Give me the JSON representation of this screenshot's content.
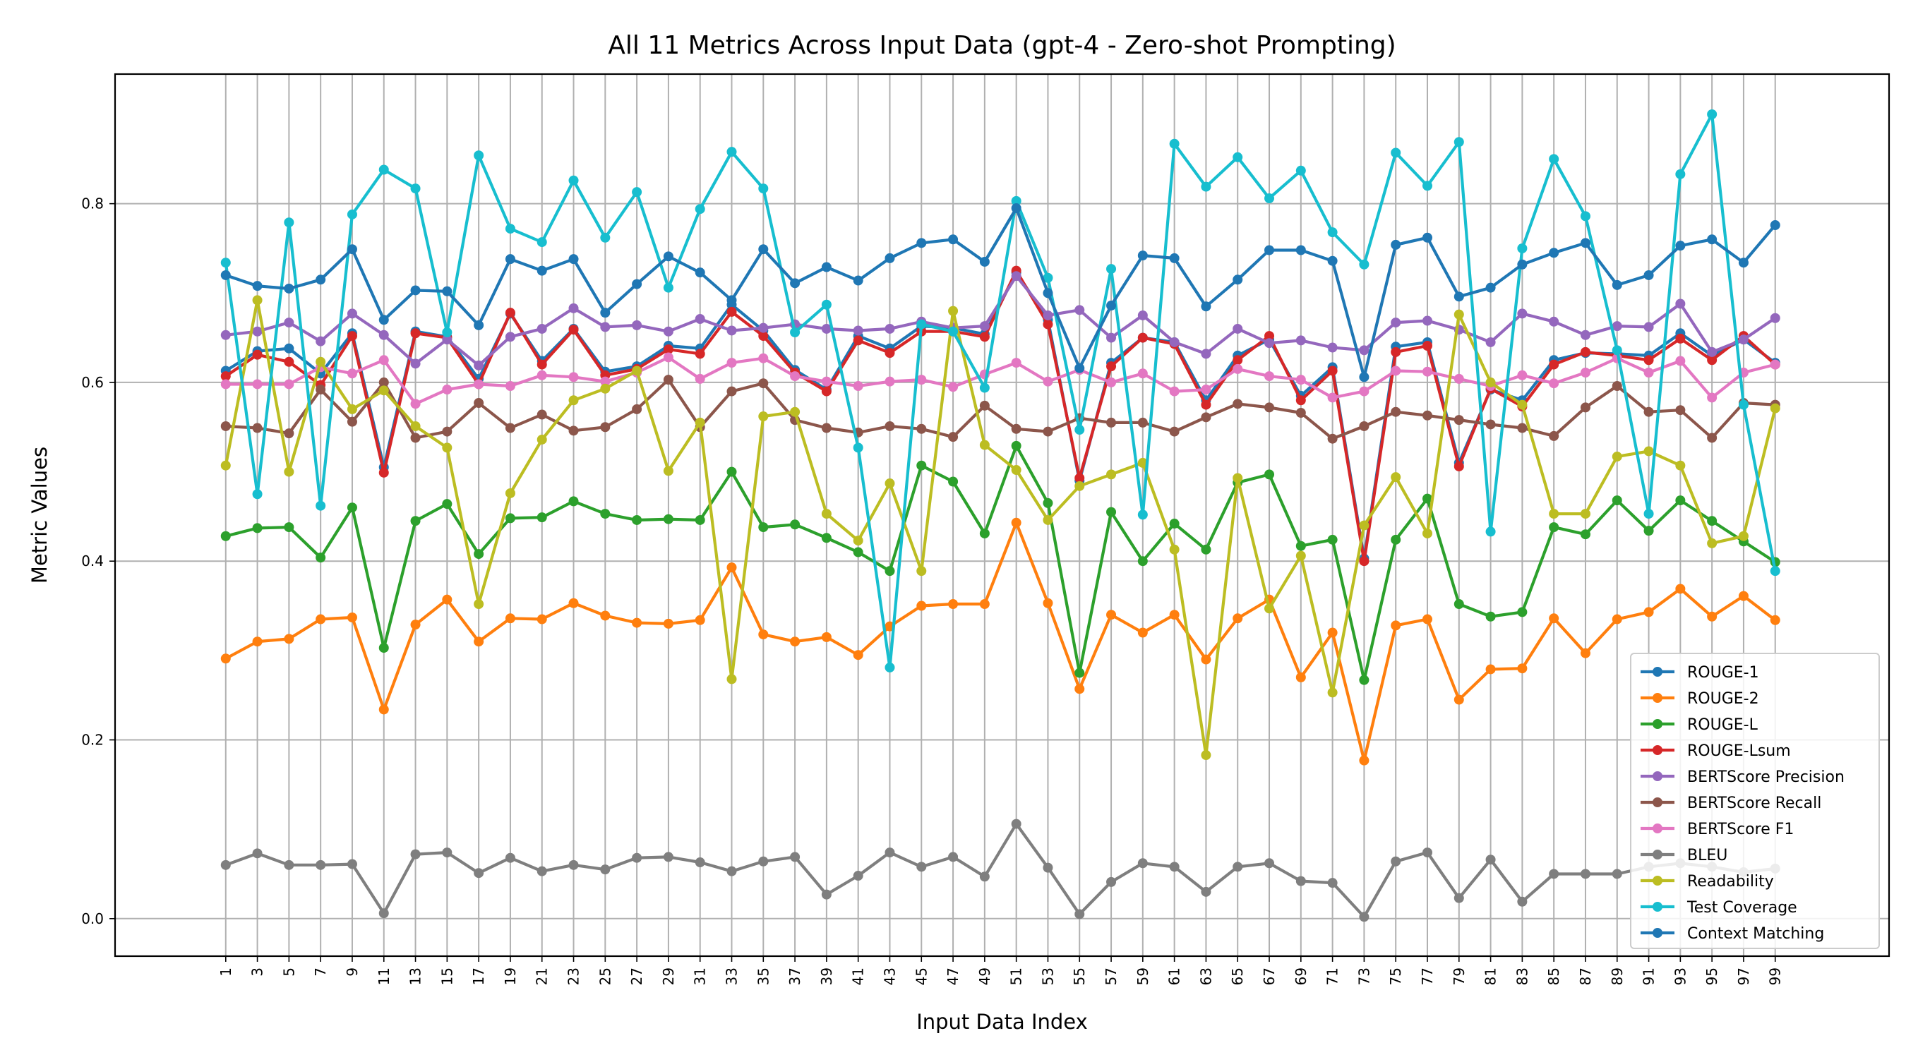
{
  "chart_data": {
    "type": "line",
    "title": "All 11 Metrics Across Input Data (gpt-4 - Zero-shot Prompting)",
    "xlabel": "Input Data Index",
    "ylabel": "Metric Values",
    "ylim": [
      -0.042,
      0.945
    ],
    "yticks": [
      0.0,
      0.2,
      0.4,
      0.6,
      0.8
    ],
    "ytick_labels": [
      "0.0",
      "0.2",
      "0.4",
      "0.6",
      "0.8"
    ],
    "grid": true,
    "legend_position": "lower-right",
    "x": [
      1,
      3,
      5,
      7,
      9,
      11,
      13,
      15,
      17,
      19,
      21,
      23,
      25,
      27,
      29,
      31,
      33,
      35,
      37,
      39,
      41,
      43,
      45,
      47,
      49,
      51,
      53,
      55,
      57,
      59,
      61,
      63,
      65,
      67,
      69,
      71,
      73,
      75,
      77,
      79,
      81,
      83,
      85,
      87,
      89,
      91,
      93,
      95,
      97,
      99
    ],
    "x_tick_labels": [
      "1",
      "3",
      "5",
      "7",
      "9",
      "11",
      "13",
      "15",
      "17",
      "19",
      "21",
      "23",
      "25",
      "27",
      "29",
      "31",
      "33",
      "35",
      "37",
      "39",
      "41",
      "43",
      "45",
      "47",
      "49",
      "51",
      "53",
      "55",
      "57",
      "59",
      "61",
      "63",
      "65",
      "67",
      "69",
      "71",
      "73",
      "75",
      "77",
      "79",
      "81",
      "83",
      "85",
      "87",
      "89",
      "91",
      "93",
      "95",
      "97",
      "99"
    ],
    "series": [
      {
        "name": "ROUGE-1",
        "color": "#1f77b4",
        "values": [
          0.613,
          0.635,
          0.638,
          0.61,
          0.655,
          0.505,
          0.657,
          0.651,
          0.604,
          0.677,
          0.624,
          0.66,
          0.612,
          0.618,
          0.641,
          0.638,
          0.687,
          0.658,
          0.614,
          0.592,
          0.652,
          0.638,
          0.663,
          0.661,
          0.654,
          0.723,
          0.67,
          0.49,
          0.622,
          0.65,
          0.645,
          0.58,
          0.63,
          0.648,
          0.585,
          0.617,
          0.403,
          0.64,
          0.645,
          0.51,
          0.592,
          0.58,
          0.625,
          0.633,
          0.632,
          0.63,
          0.655,
          0.63,
          0.648,
          0.622
        ]
      },
      {
        "name": "ROUGE-2",
        "color": "#ff7f0e",
        "values": [
          0.291,
          0.31,
          0.313,
          0.335,
          0.337,
          0.234,
          0.329,
          0.357,
          0.31,
          0.336,
          0.335,
          0.353,
          0.339,
          0.331,
          0.33,
          0.334,
          0.393,
          0.318,
          0.31,
          0.315,
          0.295,
          0.327,
          0.35,
          0.352,
          0.352,
          0.443,
          0.353,
          0.257,
          0.34,
          0.32,
          0.34,
          0.29,
          0.336,
          0.357,
          0.27,
          0.32,
          0.177,
          0.328,
          0.335,
          0.245,
          0.279,
          0.28,
          0.336,
          0.297,
          0.335,
          0.343,
          0.369,
          0.338,
          0.361,
          0.334
        ]
      },
      {
        "name": "ROUGE-L",
        "color": "#2ca02c",
        "values": [
          0.428,
          0.437,
          0.438,
          0.404,
          0.46,
          0.303,
          0.445,
          0.464,
          0.408,
          0.448,
          0.449,
          0.467,
          0.453,
          0.446,
          0.447,
          0.446,
          0.5,
          0.438,
          0.441,
          0.426,
          0.41,
          0.389,
          0.507,
          0.489,
          0.431,
          0.529,
          0.465,
          0.275,
          0.455,
          0.4,
          0.442,
          0.413,
          0.488,
          0.497,
          0.417,
          0.424,
          0.267,
          0.424,
          0.47,
          0.352,
          0.338,
          0.343,
          0.438,
          0.43,
          0.468,
          0.434,
          0.468,
          0.445,
          0.422,
          0.399
        ]
      },
      {
        "name": "ROUGE-Lsum",
        "color": "#d62728",
        "values": [
          0.607,
          0.631,
          0.623,
          0.597,
          0.652,
          0.499,
          0.655,
          0.65,
          0.598,
          0.678,
          0.62,
          0.659,
          0.608,
          0.615,
          0.637,
          0.632,
          0.679,
          0.652,
          0.611,
          0.59,
          0.647,
          0.633,
          0.657,
          0.657,
          0.651,
          0.725,
          0.665,
          0.493,
          0.618,
          0.65,
          0.643,
          0.575,
          0.625,
          0.652,
          0.58,
          0.613,
          0.4,
          0.634,
          0.641,
          0.506,
          0.593,
          0.573,
          0.62,
          0.634,
          0.63,
          0.625,
          0.649,
          0.625,
          0.652,
          0.62
        ]
      },
      {
        "name": "BERTScore Precision",
        "color": "#9467bd",
        "values": [
          0.653,
          0.657,
          0.667,
          0.646,
          0.677,
          0.653,
          0.621,
          0.648,
          0.619,
          0.651,
          0.66,
          0.683,
          0.662,
          0.664,
          0.657,
          0.671,
          0.658,
          0.661,
          0.665,
          0.66,
          0.658,
          0.66,
          0.668,
          0.661,
          0.663,
          0.719,
          0.675,
          0.681,
          0.65,
          0.675,
          0.645,
          0.632,
          0.66,
          0.644,
          0.647,
          0.639,
          0.636,
          0.667,
          0.669,
          0.659,
          0.645,
          0.677,
          0.668,
          0.653,
          0.663,
          0.662,
          0.688,
          0.634,
          0.648,
          0.672
        ]
      },
      {
        "name": "BERTScore Recall",
        "color": "#8c564b",
        "values": [
          0.551,
          0.549,
          0.543,
          0.592,
          0.556,
          0.6,
          0.538,
          0.545,
          0.577,
          0.549,
          0.564,
          0.546,
          0.55,
          0.57,
          0.603,
          0.55,
          0.59,
          0.599,
          0.558,
          0.549,
          0.544,
          0.551,
          0.548,
          0.539,
          0.574,
          0.548,
          0.545,
          0.56,
          0.555,
          0.555,
          0.545,
          0.561,
          0.576,
          0.572,
          0.566,
          0.537,
          0.551,
          0.567,
          0.563,
          0.558,
          0.553,
          0.549,
          0.54,
          0.572,
          0.596,
          0.567,
          0.569,
          0.538,
          0.577,
          0.575
        ]
      },
      {
        "name": "BERTScore F1",
        "color": "#e377c2",
        "values": [
          0.598,
          0.598,
          0.598,
          0.617,
          0.61,
          0.625,
          0.576,
          0.592,
          0.598,
          0.596,
          0.608,
          0.606,
          0.601,
          0.611,
          0.628,
          0.604,
          0.622,
          0.627,
          0.607,
          0.601,
          0.596,
          0.601,
          0.603,
          0.595,
          0.609,
          0.622,
          0.601,
          0.614,
          0.6,
          0.61,
          0.59,
          0.592,
          0.615,
          0.607,
          0.603,
          0.583,
          0.59,
          0.613,
          0.612,
          0.604,
          0.596,
          0.608,
          0.599,
          0.611,
          0.627,
          0.611,
          0.624,
          0.583,
          0.611,
          0.62
        ]
      },
      {
        "name": "BLEU",
        "color": "#7f7f7f",
        "values": [
          0.06,
          0.073,
          0.06,
          0.06,
          0.061,
          0.006,
          0.072,
          0.074,
          0.051,
          0.068,
          0.053,
          0.06,
          0.055,
          0.068,
          0.069,
          0.063,
          0.053,
          0.064,
          0.069,
          0.027,
          0.048,
          0.074,
          0.058,
          0.069,
          0.047,
          0.106,
          0.057,
          0.005,
          0.041,
          0.062,
          0.058,
          0.03,
          0.058,
          0.062,
          0.042,
          0.04,
          0.002,
          0.064,
          0.074,
          0.023,
          0.066,
          0.019,
          0.05,
          0.05,
          0.05,
          0.058,
          0.062,
          0.058,
          0.052,
          0.056
        ]
      },
      {
        "name": "Readability",
        "color": "#bcbd22",
        "values": [
          0.507,
          0.692,
          0.5,
          0.623,
          0.57,
          0.591,
          0.551,
          0.527,
          0.352,
          0.476,
          0.536,
          0.58,
          0.593,
          0.613,
          0.501,
          0.555,
          0.268,
          0.562,
          0.567,
          0.453,
          0.423,
          0.487,
          0.389,
          0.68,
          0.53,
          0.502,
          0.446,
          0.484,
          0.497,
          0.51,
          0.413,
          0.183,
          0.493,
          0.347,
          0.406,
          0.253,
          0.44,
          0.494,
          0.431,
          0.676,
          0.6,
          0.575,
          0.453,
          0.453,
          0.517,
          0.523,
          0.507,
          0.42,
          0.428,
          0.571
        ]
      },
      {
        "name": "Test Coverage",
        "color": "#17becf",
        "values": [
          0.734,
          0.475,
          0.779,
          0.462,
          0.788,
          0.838,
          0.817,
          0.656,
          0.854,
          0.772,
          0.757,
          0.826,
          0.762,
          0.813,
          0.706,
          0.794,
          0.858,
          0.817,
          0.656,
          0.687,
          0.527,
          0.281,
          0.665,
          0.657,
          0.594,
          0.803,
          0.717,
          0.547,
          0.727,
          0.452,
          0.867,
          0.819,
          0.852,
          0.806,
          0.837,
          0.768,
          0.732,
          0.857,
          0.82,
          0.869,
          0.433,
          0.75,
          0.85,
          0.786,
          0.636,
          0.453,
          0.833,
          0.9,
          0.575,
          0.389
        ]
      },
      {
        "name": "Context Matching",
        "color": "#1f77b4",
        "values": [
          0.72,
          0.708,
          0.705,
          0.715,
          0.749,
          0.67,
          0.703,
          0.702,
          0.664,
          0.738,
          0.725,
          0.738,
          0.678,
          0.71,
          0.741,
          0.723,
          0.692,
          0.749,
          0.711,
          0.729,
          0.714,
          0.739,
          0.756,
          0.76,
          0.735,
          0.795,
          0.7,
          0.616,
          0.686,
          0.742,
          0.739,
          0.685,
          0.715,
          0.748,
          0.748,
          0.736,
          0.606,
          0.754,
          0.762,
          0.696,
          0.706,
          0.732,
          0.745,
          0.756,
          0.709,
          0.72,
          0.753,
          0.76,
          0.734,
          0.776
        ]
      }
    ]
  }
}
